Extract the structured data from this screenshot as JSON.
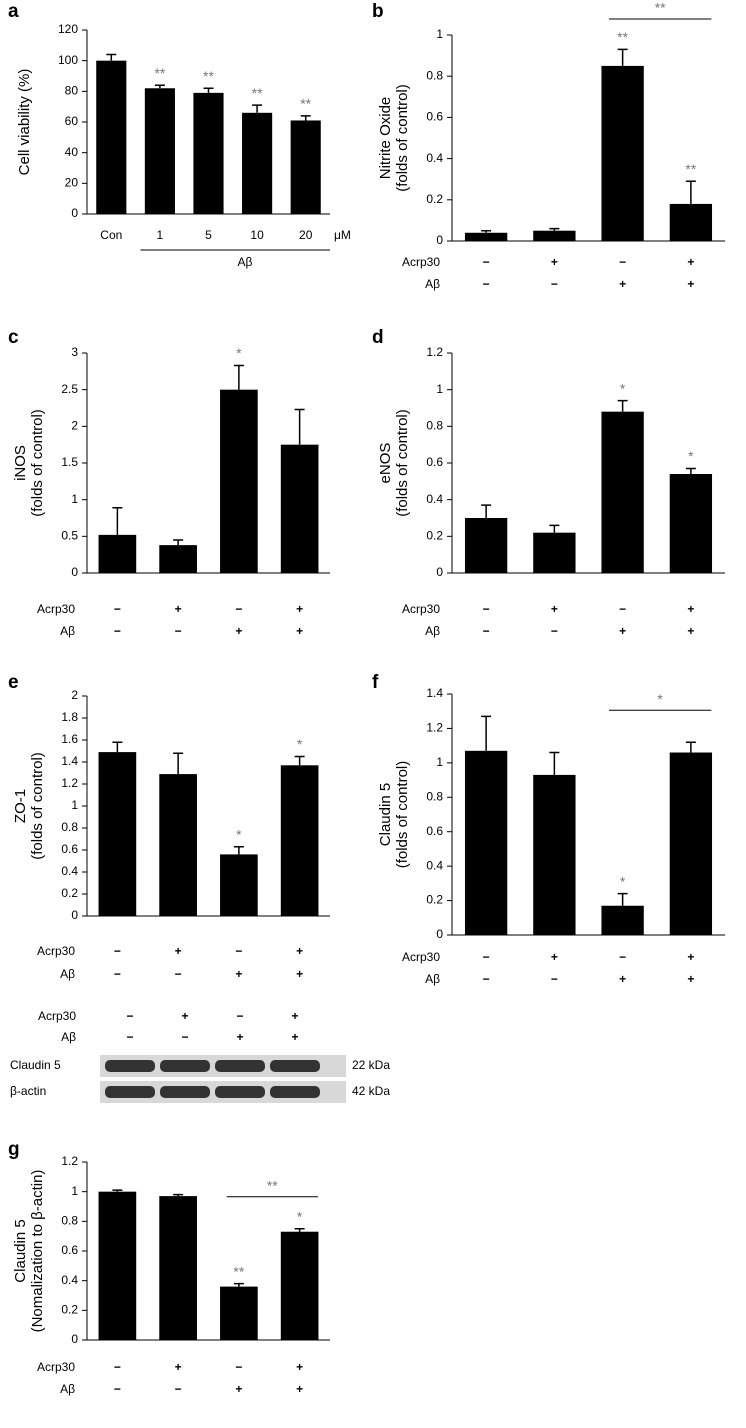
{
  "chart_data": [
    {
      "type": "bar",
      "panel": "a",
      "ylabel": [
        "Cell viability (%)"
      ],
      "color": "#000000",
      "ylim": [
        0,
        120
      ],
      "yticks": [
        0,
        20,
        40,
        60,
        80,
        100,
        120
      ],
      "categories": [
        "Con",
        "1",
        "5",
        "10",
        "20"
      ],
      "unit": "μM",
      "group_label": "Aβ",
      "values": [
        100,
        82,
        79,
        66,
        61
      ],
      "errors": [
        4,
        2,
        3,
        5,
        3
      ],
      "significance": [
        null,
        "**",
        "**",
        "**",
        "**"
      ]
    },
    {
      "type": "bar",
      "panel": "b",
      "ylabel": [
        "Nitrite Oxide",
        "(folds of control)"
      ],
      "color": "#000000",
      "ylim": [
        0,
        1
      ],
      "yticks": [
        0,
        0.2,
        0.4,
        0.6,
        0.8,
        1
      ],
      "rows": [
        {
          "name": "Acrp30",
          "values": [
            "−",
            "+",
            "−",
            "+"
          ]
        },
        {
          "name": "Aβ",
          "values": [
            "−",
            "−",
            "+",
            "+"
          ]
        }
      ],
      "values": [
        0.04,
        0.05,
        0.85,
        0.18
      ],
      "errors": [
        0.01,
        0.01,
        0.08,
        0.11
      ],
      "significance": [
        null,
        null,
        "**",
        "**"
      ],
      "bracket": {
        "label": "**",
        "bars": [
          2,
          3
        ]
      }
    },
    {
      "type": "bar",
      "panel": "c",
      "ylabel": [
        "iNOS",
        "(folds of control)"
      ],
      "color": "#000000",
      "ylim": [
        0,
        3
      ],
      "yticks": [
        0,
        0.5,
        1,
        1.5,
        2,
        2.5,
        3
      ],
      "rows": [
        {
          "name": "Acrp30",
          "values": [
            "−",
            "+",
            "−",
            "+"
          ]
        },
        {
          "name": "Aβ",
          "values": [
            "−",
            "−",
            "+",
            "+"
          ]
        }
      ],
      "values": [
        0.52,
        0.38,
        2.5,
        1.75
      ],
      "errors": [
        0.37,
        0.07,
        0.33,
        0.48
      ],
      "significance": [
        null,
        null,
        "*",
        null
      ]
    },
    {
      "type": "bar",
      "panel": "d",
      "ylabel": [
        "eNOS",
        "(folds of control)"
      ],
      "color": "#000000",
      "ylim": [
        0,
        1.2
      ],
      "yticks": [
        0,
        0.2,
        0.4,
        0.6,
        0.8,
        1,
        1.2
      ],
      "rows": [
        {
          "name": "Acrp30",
          "values": [
            "−",
            "+",
            "−",
            "+"
          ]
        },
        {
          "name": "Aβ",
          "values": [
            "−",
            "−",
            "+",
            "+"
          ]
        }
      ],
      "values": [
        0.3,
        0.22,
        0.88,
        0.54
      ],
      "errors": [
        0.07,
        0.04,
        0.06,
        0.03
      ],
      "significance": [
        null,
        null,
        "*",
        "*"
      ]
    },
    {
      "type": "bar",
      "panel": "e",
      "ylabel": [
        "ZO-1",
        "(folds of control)"
      ],
      "color": "#000000",
      "ylim": [
        0,
        2
      ],
      "yticks": [
        0,
        0.2,
        0.4,
        0.6,
        0.8,
        1,
        1.2,
        1.4,
        1.6,
        1.8,
        2
      ],
      "rows": [
        {
          "name": "Acrp30",
          "values": [
            "−",
            "+",
            "−",
            "+"
          ]
        },
        {
          "name": "Aβ",
          "values": [
            "−",
            "−",
            "+",
            "+"
          ]
        }
      ],
      "values": [
        1.49,
        1.29,
        0.56,
        1.37
      ],
      "errors": [
        0.09,
        0.19,
        0.07,
        0.08
      ],
      "significance": [
        null,
        null,
        "*",
        "*"
      ]
    },
    {
      "type": "bar",
      "panel": "f",
      "ylabel": [
        "Claudin 5",
        "(folds of control)"
      ],
      "color": "#000000",
      "ylim": [
        0,
        1.4
      ],
      "yticks": [
        0,
        0.2,
        0.4,
        0.6,
        0.8,
        1,
        1.2,
        1.4
      ],
      "rows": [
        {
          "name": "Acrp30",
          "values": [
            "−",
            "+",
            "−",
            "+"
          ]
        },
        {
          "name": "Aβ",
          "values": [
            "−",
            "−",
            "+",
            "+"
          ]
        }
      ],
      "values": [
        1.07,
        0.93,
        0.17,
        1.06
      ],
      "errors": [
        0.2,
        0.13,
        0.07,
        0.06
      ],
      "significance": [
        null,
        null,
        "*",
        null
      ],
      "bracket": {
        "label": "*",
        "bars": [
          2,
          3
        ]
      }
    },
    {
      "type": "bar",
      "panel": "g",
      "ylabel": [
        "Claudin 5",
        "(Nomalization to β-actin)"
      ],
      "color": "#000000",
      "ylim": [
        0,
        1.2
      ],
      "yticks": [
        0,
        0.2,
        0.4,
        0.6,
        0.8,
        1,
        1.2
      ],
      "rows": [
        {
          "name": "Acrp30",
          "values": [
            "−",
            "+",
            "−",
            "+"
          ]
        },
        {
          "name": "Aβ",
          "values": [
            "−",
            "−",
            "+",
            "+"
          ]
        }
      ],
      "values": [
        1.0,
        0.97,
        0.36,
        0.73
      ],
      "errors": [
        0.01,
        0.01,
        0.02,
        0.02
      ],
      "significance": [
        null,
        null,
        "**",
        "*"
      ],
      "bracket": {
        "label": "**",
        "bars": [
          2,
          3
        ]
      }
    }
  ],
  "blot": {
    "rows": [
      {
        "name": "Acrp30",
        "values": [
          "−",
          "+",
          "−",
          "+"
        ]
      },
      {
        "name": "Aβ",
        "values": [
          "−",
          "−",
          "+",
          "+"
        ]
      }
    ],
    "bands": [
      {
        "name": "Claudin 5",
        "size": "22 kDa"
      },
      {
        "name": "β-actin",
        "size": "42 kDa"
      }
    ]
  }
}
